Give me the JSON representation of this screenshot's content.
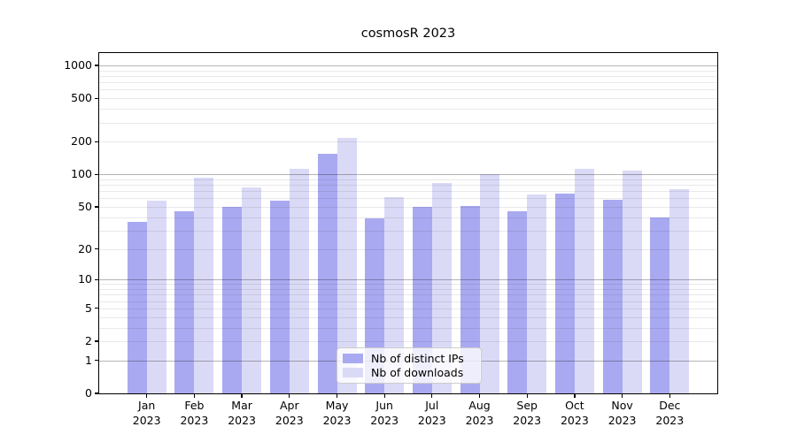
{
  "figure": {
    "title": "cosmosR 2023",
    "background": "#ffffff"
  },
  "chart_data": {
    "type": "bar",
    "title": "cosmosR 2023",
    "categories": [
      "Jan",
      "Feb",
      "Mar",
      "Apr",
      "May",
      "Jun",
      "Jul",
      "Aug",
      "Sep",
      "Oct",
      "Nov",
      "Dec"
    ],
    "year": "2023",
    "series": [
      {
        "name": "Nb of distinct IPs",
        "color": "#a9a9f1",
        "values": [
          36,
          45,
          50,
          57,
          155,
          39,
          50,
          51,
          45,
          67,
          58,
          40
        ]
      },
      {
        "name": "Nb of downloads",
        "color": "#dadaf7",
        "values": [
          57,
          93,
          76,
          112,
          215,
          62,
          83,
          100,
          65,
          113,
          108,
          73
        ]
      }
    ],
    "xlabel": "",
    "ylabel": "",
    "yscale": "log1p",
    "ylim": [
      0,
      1300
    ],
    "yticks": [
      0,
      1,
      2,
      5,
      10,
      20,
      50,
      100,
      200,
      500,
      1000
    ],
    "grid": true,
    "gridlines_major": [
      1,
      10,
      100,
      1000
    ],
    "gridlines_minor": [
      2,
      3,
      4,
      5,
      6,
      7,
      8,
      9,
      20,
      30,
      40,
      50,
      60,
      70,
      80,
      90,
      200,
      300,
      400,
      500,
      600,
      700,
      800,
      900
    ],
    "legend": {
      "position": "lower center",
      "entries": [
        "Nb of distinct IPs",
        "Nb of downloads"
      ]
    }
  },
  "colors": {
    "bar_distinct_ips": "#a9a9f1",
    "bar_downloads": "#dadaf7",
    "grid_major": "#b4b4b4",
    "grid_minor": "#e9e9e9",
    "axis": "#000000",
    "legend_border": "#cccccc",
    "text": "#000000"
  }
}
